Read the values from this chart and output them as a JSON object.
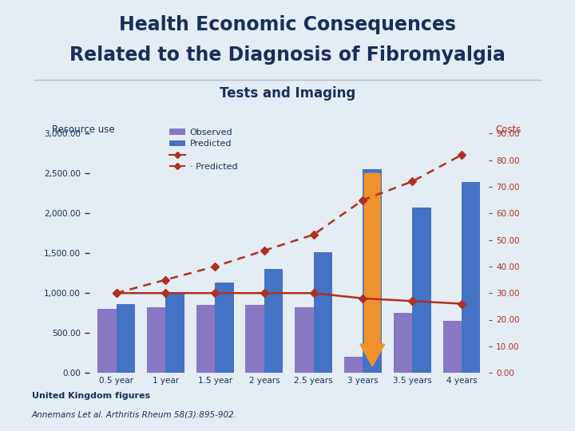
{
  "title_line1": "Health Economic Consequences",
  "title_line2": "Related to the Diagnosis of Fibromyalgia",
  "subtitle": "Tests and Imaging",
  "label_left": "Resource use",
  "label_right": "Costs",
  "categories": [
    "0.5 year",
    "1 year",
    "1.5 year",
    "2 years",
    "2.5 years",
    "3 years",
    "3.5 years",
    "4 years"
  ],
  "observed_bars": [
    800,
    820,
    850,
    855,
    820,
    200,
    755,
    650
  ],
  "predicted_bars": [
    860,
    990,
    1130,
    1300,
    1510,
    2550,
    2070,
    2390
  ],
  "observed_line": [
    30,
    30,
    30,
    30,
    30,
    28,
    27,
    26
  ],
  "predicted_line": [
    30,
    35,
    40,
    46,
    52,
    65,
    72,
    82
  ],
  "left_ylim": [
    0,
    3000
  ],
  "right_ylim": [
    0,
    90
  ],
  "left_yticks": [
    0,
    500,
    1000,
    1500,
    2000,
    2500,
    3000
  ],
  "right_yticks": [
    0,
    10,
    20,
    30,
    40,
    50,
    60,
    70,
    80,
    90
  ],
  "bar_color_observed": "#8878c3",
  "bar_color_predicted": "#4472c4",
  "line_color": "#b03020",
  "arrow_color": "#f0922b",
  "title_color": "#1a2e5a",
  "bg_color": "#e4edf4",
  "separator_color": "#a8c0d0",
  "tick_color": "#1a2e5a",
  "footnote1": "United Kingdom figures",
  "footnote2": "Annemans Let al. Arthritis Rheum 58(3):895-902."
}
